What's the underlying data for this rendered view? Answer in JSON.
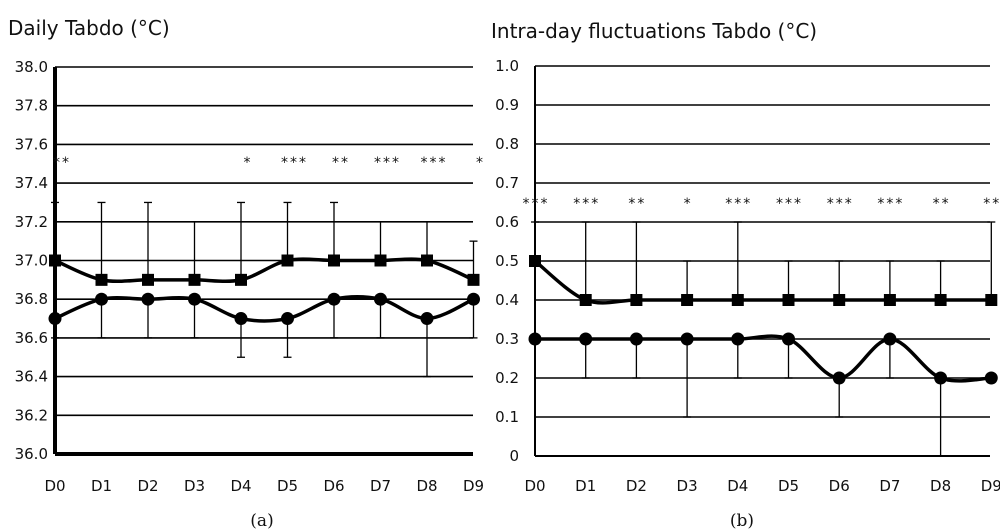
{
  "chart_data": [
    {
      "type": "line",
      "title": "Daily Tabdo (°C)",
      "caption": "(a)",
      "xlabel": "",
      "ylabel": "",
      "ylim": [
        36.0,
        38.0
      ],
      "yticks": [
        "36.0",
        "36.2",
        "36.4",
        "36.6",
        "36.8",
        "37.0",
        "37.2",
        "37.4",
        "37.6",
        "37.8",
        "38.0"
      ],
      "categories": [
        "D0",
        "D1",
        "D2",
        "D3",
        "D4",
        "D5",
        "D6",
        "D7",
        "D8",
        "D9"
      ],
      "grid": "horizontal",
      "significance": [
        "**",
        "",
        "",
        "",
        "*",
        "***",
        "**",
        "***",
        "***",
        "*"
      ],
      "series": [
        {
          "marker": "square",
          "values": [
            37.0,
            36.9,
            36.9,
            36.9,
            36.9,
            37.0,
            37.0,
            37.0,
            37.0,
            36.9
          ],
          "error": [
            0.3,
            0.4,
            0.4,
            0.3,
            0.4,
            0.3,
            0.3,
            0.2,
            0.2,
            0.2
          ],
          "error_direction": "up"
        },
        {
          "marker": "circle",
          "values": [
            36.7,
            36.8,
            36.8,
            36.8,
            36.7,
            36.7,
            36.8,
            36.8,
            36.7,
            36.8
          ],
          "error": [
            0.1,
            0.2,
            0.2,
            0.2,
            0.2,
            0.2,
            0.2,
            0.2,
            0.3,
            0.2
          ],
          "error_direction": "down"
        }
      ]
    },
    {
      "type": "line",
      "title": "Intra-day fluctuations Tabdo (°C)",
      "caption": "(b)",
      "xlabel": "",
      "ylabel": "",
      "ylim": [
        0,
        1.0
      ],
      "yticks": [
        "0",
        "0.1",
        "0.2",
        "0.3",
        "0.4",
        "0.5",
        "0.6",
        "0.7",
        "0.8",
        "0.9",
        "1.0"
      ],
      "categories": [
        "D0",
        "D1",
        "D2",
        "D3",
        "D4",
        "D5",
        "D6",
        "D7",
        "D8",
        "D9"
      ],
      "grid": "horizontal",
      "significance": [
        "***",
        "***",
        "**",
        "*",
        "***",
        "***",
        "***",
        "***",
        "**",
        "**"
      ],
      "series": [
        {
          "marker": "square",
          "values": [
            0.5,
            0.4,
            0.4,
            0.4,
            0.4,
            0.4,
            0.4,
            0.4,
            0.4,
            0.4
          ],
          "error": [
            0.1,
            0.2,
            0.2,
            0.1,
            0.2,
            0.1,
            0.1,
            0.1,
            0.1,
            0.2
          ],
          "error_direction": "up"
        },
        {
          "marker": "circle",
          "values": [
            0.3,
            0.3,
            0.3,
            0.3,
            0.3,
            0.3,
            0.2,
            0.3,
            0.2,
            0.2
          ],
          "error": [
            0.0,
            0.1,
            0.1,
            0.2,
            0.1,
            0.1,
            0.1,
            0.1,
            0.2,
            0.0
          ],
          "error_direction": "down"
        }
      ]
    }
  ]
}
